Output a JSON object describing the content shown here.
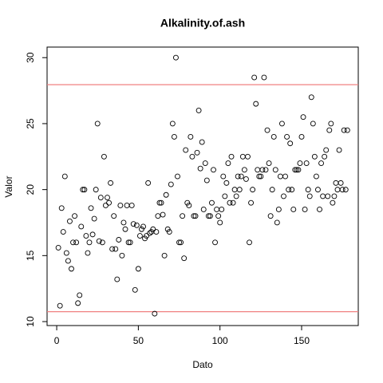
{
  "chart_data": {
    "type": "scatter",
    "title": "Alkalinity.of.ash",
    "x_label": "Dato",
    "y_label": "Valor",
    "values": [
      15.6,
      11.2,
      18.6,
      16.8,
      21,
      15.2,
      14.6,
      17.6,
      14,
      16,
      18,
      16,
      11.4,
      12,
      17.2,
      20,
      20,
      16.5,
      15.2,
      16,
      18.6,
      16.6,
      17.8,
      20,
      25,
      16.1,
      19.4,
      16,
      22.5,
      18.8,
      19.4,
      19,
      20.5,
      15.5,
      18,
      15.5,
      13.2,
      16.2,
      18.8,
      15,
      17.5,
      17,
      18.8,
      16,
      16,
      18.8,
      17.4,
      12.4,
      17.3,
      14,
      16.5,
      17,
      17.2,
      16.3,
      16.5,
      20.5,
      16.7,
      16.8,
      17,
      10.6,
      16.8,
      18,
      19,
      19,
      18.1,
      15,
      19.6,
      17,
      16.8,
      20.4,
      25,
      24,
      30,
      21,
      16,
      16,
      18,
      14.8,
      23,
      19,
      18.8,
      24,
      22.5,
      18,
      18,
      22.8,
      26,
      21.6,
      23.6,
      18.5,
      22,
      20.7,
      18,
      18,
      19,
      21.5,
      16,
      18.5,
      18,
      17.5,
      18.5,
      21,
      19.5,
      20.5,
      22,
      19,
      22.5,
      19,
      20,
      19.5,
      21,
      20,
      21,
      22.5,
      21.5,
      20.8,
      22.5,
      16,
      19,
      20,
      28.5,
      26.5,
      21.5,
      21,
      21,
      21.5,
      28.5,
      21.5,
      24.5,
      22,
      18,
      20,
      24,
      21.5,
      17.5,
      18.5,
      21,
      25,
      19.5,
      21,
      24,
      20,
      23.5,
      20,
      18.5,
      21.5,
      21.5,
      21.5,
      22,
      24,
      25.5,
      18.5,
      22,
      20,
      19.5,
      27,
      25,
      22.5,
      21,
      20,
      18.5,
      22,
      19.5,
      22.5,
      23,
      19.5,
      24.5,
      25,
      19,
      19.5,
      20.5,
      20,
      23,
      20.5,
      20,
      24.5,
      20,
      24.5
    ],
    "color": "#000000",
    "xlim": [
      -5.9,
      184.7
    ],
    "xticks": [
      0,
      50,
      100,
      150
    ],
    "ylim": [
      9.7,
      30.8
    ],
    "yticks": [
      10,
      15,
      20,
      25,
      30
    ],
    "hlines": [
      {
        "value": 10.75,
        "color": "#f08080"
      },
      {
        "value": 27.95,
        "color": "#f08080"
      }
    ]
  }
}
